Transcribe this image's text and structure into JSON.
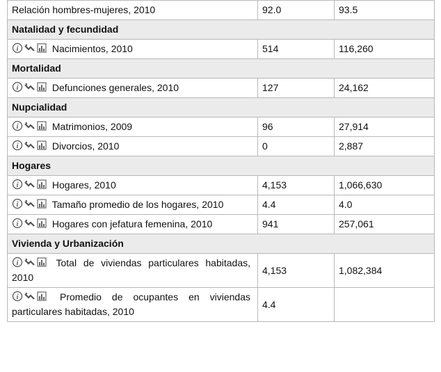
{
  "table": {
    "rows": [
      {
        "label": "Relación hombres-mujeres, 2010",
        "values": [
          "92.0",
          "93.5"
        ]
      },
      {
        "section": "Natalidad y fecundidad"
      },
      {
        "label": "Nacimientos, 2010",
        "values": [
          "514",
          "116,260"
        ]
      },
      {
        "section": "Mortalidad"
      },
      {
        "label": "Defunciones generales, 2010",
        "values": [
          "127",
          "24,162"
        ]
      },
      {
        "section": "Nupcialidad"
      },
      {
        "label": "Matrimonios, 2009",
        "values": [
          "96",
          "27,914"
        ]
      },
      {
        "label": "Divorcios, 2010",
        "values": [
          "0",
          "2,887"
        ]
      },
      {
        "section": "Hogares"
      },
      {
        "label": "Hogares, 2010",
        "values": [
          "4,153",
          "1,066,630"
        ]
      },
      {
        "label": "Tamaño promedio de los hogares, 2010",
        "values": [
          "4.4",
          "4.0"
        ]
      },
      {
        "label": "Hogares con jefatura femenina, 2010",
        "values": [
          "941",
          "257,061"
        ]
      },
      {
        "section": "Vivienda y Urbanización"
      },
      {
        "label": "Total de viviendas particulares habitadas, 2010",
        "values": [
          "4,153",
          "1,082,384"
        ]
      },
      {
        "label": "Promedio de ocupantes en viviendas particulares habitadas, 2010",
        "values": [
          "4.4"
        ]
      }
    ]
  }
}
